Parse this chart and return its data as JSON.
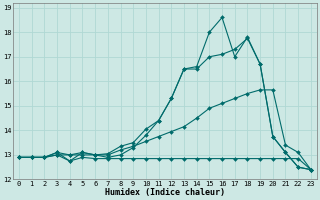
{
  "xlabel": "Humidex (Indice chaleur)",
  "background_color": "#cde8e4",
  "grid_color": "#b0d8d4",
  "line_color": "#006b6b",
  "xlim": [
    -0.5,
    23.5
  ],
  "ylim": [
    12,
    19.2
  ],
  "xticks": [
    0,
    1,
    2,
    3,
    4,
    5,
    6,
    7,
    8,
    9,
    10,
    11,
    12,
    13,
    14,
    15,
    16,
    17,
    18,
    19,
    20,
    21,
    22,
    23
  ],
  "yticks": [
    12,
    13,
    14,
    15,
    16,
    17,
    18,
    19
  ],
  "series": [
    {
      "x": [
        0,
        1,
        2,
        3,
        4,
        5,
        6,
        7,
        8,
        9,
        10,
        11,
        12,
        13,
        14,
        15,
        16,
        17,
        18,
        19,
        20,
        21,
        22,
        23
      ],
      "y": [
        12.9,
        12.9,
        12.9,
        13.0,
        12.75,
        12.9,
        12.85,
        12.85,
        12.85,
        12.85,
        12.85,
        12.85,
        12.85,
        12.85,
        12.85,
        12.85,
        12.85,
        12.85,
        12.85,
        12.85,
        12.85,
        12.85,
        12.85,
        12.4
      ]
    },
    {
      "x": [
        0,
        1,
        2,
        3,
        4,
        5,
        6,
        7,
        8,
        9,
        10,
        11,
        12,
        13,
        14,
        15,
        16,
        17,
        18,
        19,
        20,
        21,
        22,
        23
      ],
      "y": [
        12.9,
        12.9,
        12.9,
        13.0,
        13.0,
        13.0,
        13.0,
        13.0,
        13.2,
        13.35,
        13.55,
        13.75,
        13.95,
        14.15,
        14.5,
        14.9,
        15.1,
        15.3,
        15.5,
        15.65,
        15.65,
        13.4,
        13.1,
        12.4
      ]
    },
    {
      "x": [
        0,
        1,
        2,
        3,
        4,
        5,
        6,
        7,
        8,
        9,
        10,
        11,
        12,
        13,
        14,
        15,
        16,
        17,
        18,
        19,
        20,
        21,
        22,
        23
      ],
      "y": [
        12.9,
        12.9,
        12.9,
        13.1,
        13.0,
        13.1,
        13.0,
        13.05,
        13.35,
        13.5,
        14.05,
        14.4,
        15.3,
        16.5,
        16.5,
        17.0,
        17.1,
        17.3,
        17.75,
        16.7,
        13.75,
        13.1,
        12.5,
        12.4
      ]
    },
    {
      "x": [
        0,
        1,
        2,
        3,
        4,
        5,
        6,
        7,
        8,
        9,
        10,
        11,
        12,
        13,
        14,
        15,
        16,
        17,
        18,
        19,
        20,
        21,
        22,
        23
      ],
      "y": [
        12.9,
        12.9,
        12.9,
        13.1,
        12.75,
        13.1,
        13.0,
        12.9,
        13.0,
        13.3,
        13.8,
        14.4,
        15.3,
        16.5,
        16.6,
        18.0,
        18.6,
        17.0,
        17.8,
        16.7,
        13.75,
        13.1,
        12.5,
        12.4
      ]
    }
  ]
}
